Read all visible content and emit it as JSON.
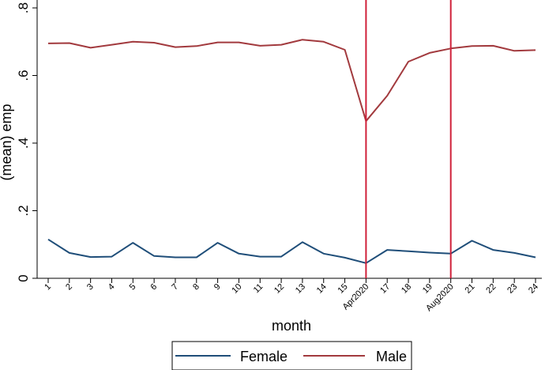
{
  "chart_data": {
    "type": "line",
    "xlabel": "month",
    "ylabel": "(mean) emp",
    "categories": [
      "1",
      "2",
      "3",
      "4",
      "5",
      "6",
      "7",
      "8",
      "9",
      "10",
      "11",
      "12",
      "13",
      "14",
      "15",
      "Apr2020",
      "17",
      "18",
      "19",
      "Aug2020",
      "21",
      "22",
      "23",
      "24"
    ],
    "ylim": [
      0,
      0.8
    ],
    "yticks": [
      0,
      0.2,
      0.4,
      0.6,
      0.8
    ],
    "ytick_labels": [
      "0",
      ".2",
      ".4",
      ".6",
      ".8"
    ],
    "series": [
      {
        "name": "Female",
        "color": "#1f4e79",
        "values": [
          0.115,
          0.075,
          0.063,
          0.064,
          0.105,
          0.066,
          0.062,
          0.062,
          0.105,
          0.073,
          0.064,
          0.064,
          0.107,
          0.073,
          0.061,
          0.045,
          0.084,
          0.08,
          0.076,
          0.073,
          0.111,
          0.084,
          0.075,
          0.062
        ]
      },
      {
        "name": "Male",
        "color": "#a23a3e",
        "values": [
          0.695,
          0.696,
          0.682,
          0.691,
          0.7,
          0.697,
          0.684,
          0.687,
          0.698,
          0.698,
          0.688,
          0.691,
          0.706,
          0.7,
          0.676,
          0.465,
          0.54,
          0.641,
          0.667,
          0.68,
          0.687,
          0.688,
          0.673,
          0.675
        ]
      }
    ],
    "vlines": [
      "Apr2020",
      "Aug2020"
    ],
    "vline_color": "#d0203a",
    "grid": false,
    "legend": {
      "position": "bottom",
      "entries": [
        "Female",
        "Male"
      ]
    }
  }
}
